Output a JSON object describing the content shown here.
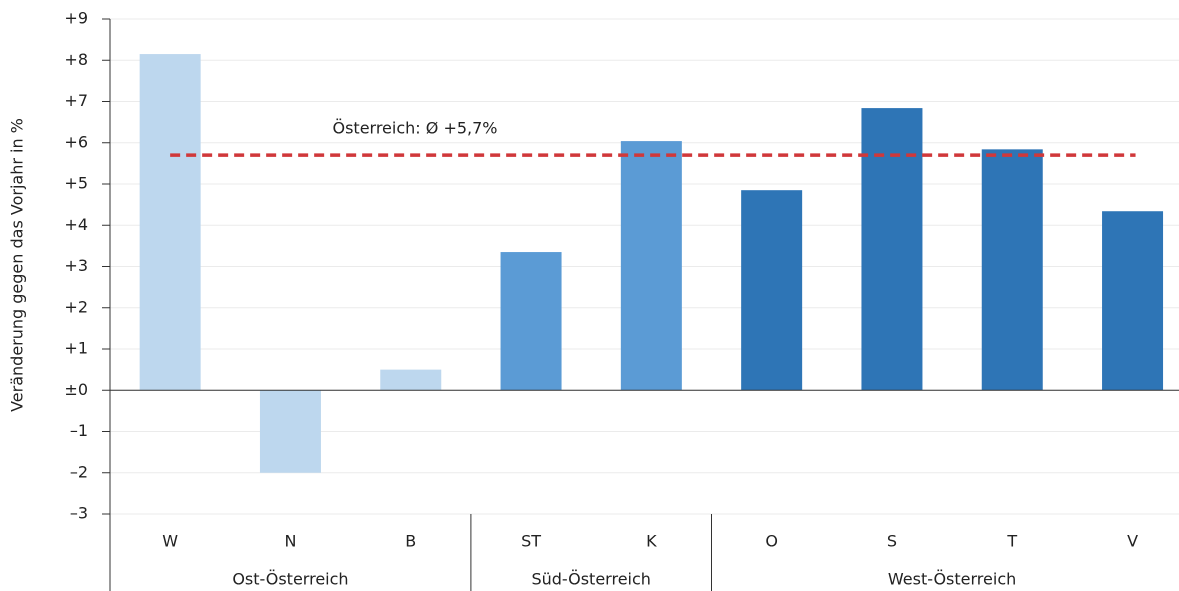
{
  "chart_data": {
    "type": "bar",
    "ylabel": "Veränderung gegen das Vorjahr in %",
    "groups": [
      {
        "name": "Ost-Österreich",
        "color": "#bdd7ee",
        "categories": [
          "W",
          "N",
          "B"
        ],
        "values": [
          8.15,
          -2.0,
          0.5
        ]
      },
      {
        "name": "Süd-Österreich",
        "color": "#5b9bd5",
        "categories": [
          "ST",
          "K"
        ],
        "values": [
          3.35,
          6.04
        ]
      },
      {
        "name": "West-Österreich",
        "color": "#2e75b6",
        "categories": [
          "O",
          "S",
          "T",
          "V"
        ],
        "values": [
          4.85,
          6.84,
          5.84,
          4.34
        ]
      }
    ],
    "reference_line": {
      "value": 5.7,
      "label": "Österreich: Ø +5,7%",
      "color": "#d0383a"
    },
    "ylim": [
      -3,
      9
    ],
    "yticks": [
      {
        "value": -3,
        "label": "–3"
      },
      {
        "value": -2,
        "label": "–2"
      },
      {
        "value": -1,
        "label": "–1"
      },
      {
        "value": 0,
        "label": "±0"
      },
      {
        "value": 1,
        "label": "+1"
      },
      {
        "value": 2,
        "label": "+2"
      },
      {
        "value": 3,
        "label": "+3"
      },
      {
        "value": 4,
        "label": "+4"
      },
      {
        "value": 5,
        "label": "+5"
      },
      {
        "value": 6,
        "label": "+6"
      },
      {
        "value": 7,
        "label": "+7"
      },
      {
        "value": 8,
        "label": "+8"
      },
      {
        "value": 9,
        "label": "+9"
      }
    ],
    "grid": true
  }
}
